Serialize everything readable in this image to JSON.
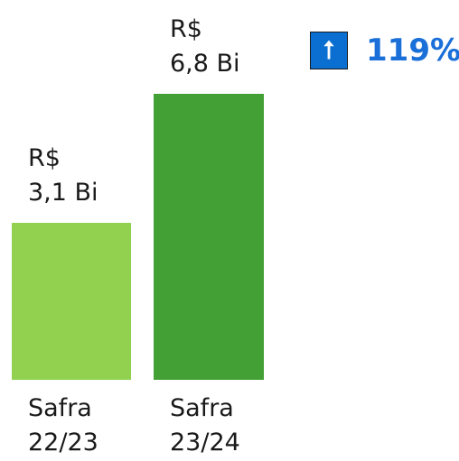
{
  "chart_data": {
    "type": "bar",
    "categories": [
      "Safra\n22/23",
      "Safra\n23/24"
    ],
    "series": [
      {
        "values": [
          3.1,
          6.8
        ],
        "colors": [
          "#92d050",
          "#43a035"
        ],
        "value_labels": [
          "R$\n3,1 Bi",
          "R$\n6,8 Bi"
        ]
      }
    ],
    "annotation": {
      "text": "119%",
      "color": "#1a6fd8",
      "icon_color": "#0a6fd0"
    }
  }
}
